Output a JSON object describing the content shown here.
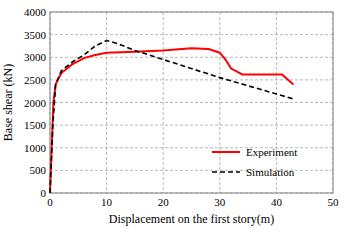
{
  "chart_data": {
    "type": "line",
    "x_label": "Displacement on the first story(m)",
    "y_label": "Base shear (kN)",
    "xlim": [
      0,
      50
    ],
    "xticks": [
      0,
      10,
      20,
      30,
      40,
      50
    ],
    "ylim": [
      0,
      4000
    ],
    "yticks": [
      0,
      500,
      1000,
      1500,
      2000,
      2500,
      3000,
      3500,
      4000
    ],
    "grid": true,
    "legend": "lower right",
    "series": [
      {
        "name": "Experiment",
        "color": "#ff0000",
        "line_style": "solid",
        "x": [
          0,
          0.3,
          0.6,
          1,
          2,
          4,
          6,
          8,
          10,
          15,
          20,
          25,
          28,
          30,
          31,
          32,
          34,
          38,
          41,
          43
        ],
        "values": [
          0,
          1000,
          2000,
          2400,
          2650,
          2850,
          2980,
          3050,
          3100,
          3120,
          3150,
          3200,
          3180,
          3100,
          2950,
          2750,
          2620,
          2620,
          2620,
          2400
        ]
      },
      {
        "name": "Simulation",
        "color": "#000000",
        "line_style": "dashed",
        "x": [
          0,
          0.5,
          1,
          2,
          4,
          6,
          8,
          10,
          12,
          15,
          20,
          30,
          43
        ],
        "values": [
          0,
          1500,
          2400,
          2700,
          2900,
          3050,
          3250,
          3370,
          3300,
          3150,
          2950,
          2550,
          2080
        ]
      }
    ]
  }
}
